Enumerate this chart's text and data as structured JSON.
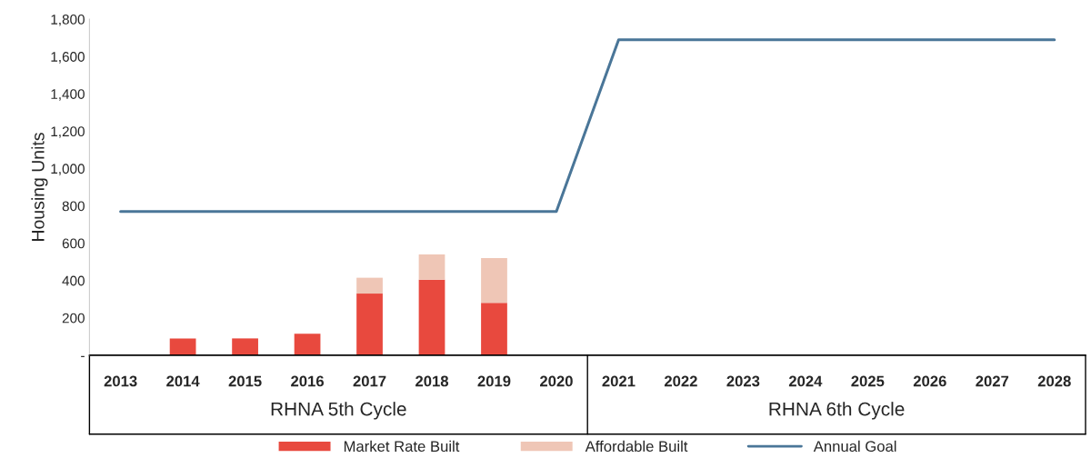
{
  "chart_data": {
    "type": "bar",
    "stacked": true,
    "ylabel": "Housing Units",
    "categories": [
      "2013",
      "2014",
      "2015",
      "2016",
      "2017",
      "2018",
      "2019",
      "2020",
      "2021",
      "2022",
      "2023",
      "2024",
      "2025",
      "2026",
      "2027",
      "2028"
    ],
    "series": [
      {
        "name": "Market Rate Built",
        "color": "#e8493e",
        "values": [
          null,
          90,
          90,
          115,
          330,
          405,
          280,
          null,
          null,
          null,
          null,
          null,
          null,
          null,
          null,
          null
        ]
      },
      {
        "name": "Affordable Built",
        "color": "#efc6b6",
        "values": [
          null,
          null,
          null,
          null,
          85,
          135,
          240,
          null,
          null,
          null,
          null,
          null,
          null,
          null,
          null,
          null
        ]
      },
      {
        "name": "Annual Goal",
        "type": "line",
        "color": "#4a7698",
        "values": [
          770,
          770,
          770,
          770,
          770,
          770,
          770,
          770,
          1690,
          1690,
          1690,
          1690,
          1690,
          1690,
          1690,
          1690
        ]
      }
    ],
    "ylim": [
      0,
      1800
    ],
    "yticks": [
      {
        "value": 0,
        "label": "-"
      },
      200,
      400,
      600,
      800,
      {
        "value": 1000,
        "label": "1,000"
      },
      {
        "value": 1200,
        "label": "1,200"
      },
      {
        "value": 1400,
        "label": "1,400"
      },
      {
        "value": 1600,
        "label": "1,600"
      },
      {
        "value": 1800,
        "label": "1,800"
      }
    ],
    "annotations": [
      "RHNA 5th Cycle",
      "RHNA 6th Cycle"
    ],
    "grid": false,
    "legend": "bottom"
  }
}
